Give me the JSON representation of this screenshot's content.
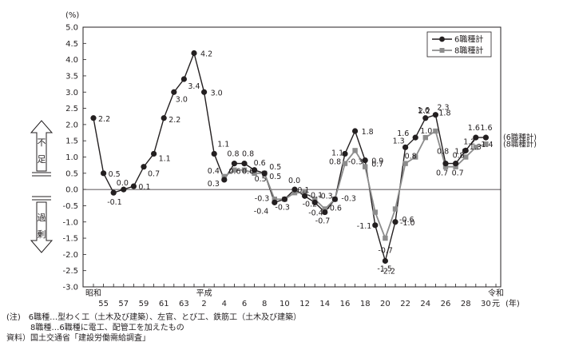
{
  "chart_data": {
    "type": "line",
    "y_unit": "(%)",
    "x_unit": "(年)",
    "ylim": [
      -3.0,
      5.0
    ],
    "y_ticks": [
      "5.0",
      "4.5",
      "4.0",
      "3.5",
      "3.0",
      "2.5",
      "2.0",
      "1.5",
      "1.0",
      "0.5",
      "0.0",
      "-0.5",
      "-1.0",
      "-1.5",
      "-2.0",
      "-2.5",
      "-3.0"
    ],
    "x_categories": [
      "S54",
      "S55",
      "S56",
      "S57",
      "S58",
      "S59",
      "S60",
      "S61",
      "S62",
      "S63",
      "H1",
      "H2",
      "H3",
      "H4",
      "H5",
      "H6",
      "H7",
      "H8",
      "H9",
      "H10",
      "H11",
      "H12",
      "H13",
      "H14",
      "H15",
      "H16",
      "H17",
      "H18",
      "H19",
      "H20",
      "H21",
      "H22",
      "H23",
      "H24",
      "H25",
      "H26",
      "H27",
      "H28",
      "H29",
      "H30",
      "R1"
    ],
    "x_tick_labels": [
      {
        "x": 1,
        "label": "55"
      },
      {
        "x": 3,
        "label": "57"
      },
      {
        "x": 5,
        "label": "59"
      },
      {
        "x": 7,
        "label": "61"
      },
      {
        "x": 9,
        "label": "63"
      },
      {
        "x": 11,
        "label": "2"
      },
      {
        "x": 13,
        "label": "4"
      },
      {
        "x": 15,
        "label": "6"
      },
      {
        "x": 17,
        "label": "8"
      },
      {
        "x": 19,
        "label": "10"
      },
      {
        "x": 21,
        "label": "12"
      },
      {
        "x": 23,
        "label": "14"
      },
      {
        "x": 25,
        "label": "16"
      },
      {
        "x": 27,
        "label": "18"
      },
      {
        "x": 29,
        "label": "20"
      },
      {
        "x": 31,
        "label": "22"
      },
      {
        "x": 33,
        "label": "24"
      },
      {
        "x": 35,
        "label": "26"
      },
      {
        "x": 37,
        "label": "28"
      },
      {
        "x": 39,
        "label": "30"
      },
      {
        "x": 40,
        "label": "元"
      }
    ],
    "era_labels": [
      {
        "x": 0,
        "label": "昭和"
      },
      {
        "x": 11,
        "label": "平成"
      },
      {
        "x": 40,
        "label": "令和"
      }
    ],
    "series": [
      {
        "name": "6職種計",
        "marker": "circle",
        "color": "#231f20",
        "values": [
          2.2,
          0.5,
          -0.1,
          0.0,
          0.1,
          0.7,
          1.1,
          2.2,
          3.0,
          3.4,
          4.2,
          3.0,
          1.1,
          0.3,
          0.8,
          0.8,
          0.6,
          0.5,
          -0.4,
          -0.3,
          0.0,
          -0.2,
          -0.4,
          -0.7,
          -0.3,
          1.1,
          1.8,
          0.9,
          -1.1,
          -2.2,
          -1.0,
          1.3,
          1.6,
          2.2,
          2.3,
          0.8,
          0.8,
          1.2,
          1.6,
          1.6
        ]
      },
      {
        "name": "8職種計",
        "marker": "square",
        "color": "#8c8c8c",
        "values": [
          null,
          null,
          null,
          null,
          null,
          null,
          null,
          null,
          null,
          null,
          null,
          null,
          null,
          0.4,
          0.6,
          0.6,
          0.5,
          0.5,
          -0.3,
          -0.3,
          -0.1,
          -0.1,
          -0.3,
          -0.6,
          -0.3,
          0.8,
          1.2,
          0.7,
          -0.7,
          -1.5,
          -0.6,
          0.8,
          1.0,
          1.6,
          1.8,
          0.7,
          0.7,
          1.0,
          1.3,
          1.4
        ]
      }
    ],
    "data_labels": [
      {
        "x": 0,
        "text": "2.2",
        "dx": 6,
        "dy": 4
      },
      {
        "x": 1,
        "text": "0.5",
        "dx": 6,
        "dy": 4
      },
      {
        "x": 2,
        "text": "-0.1",
        "dx": -8,
        "dy": 15
      },
      {
        "x": 3,
        "text": "0.0",
        "dx": -9,
        "dy": -5
      },
      {
        "x": 4,
        "text": "0.1",
        "dx": 6,
        "dy": 4
      },
      {
        "x": 5,
        "text": "0.7",
        "dx": 5,
        "dy": 12
      },
      {
        "x": 6,
        "text": "1.1",
        "dx": 6,
        "dy": 9
      },
      {
        "x": 7,
        "text": "2.2",
        "dx": 6,
        "dy": 5
      },
      {
        "x": 8,
        "text": "3.0",
        "dx": 2,
        "dy": 12
      },
      {
        "x": 9,
        "text": "3.4",
        "dx": 5,
        "dy": 12
      },
      {
        "x": 10,
        "text": "4.2",
        "dx": 8,
        "dy": 4
      },
      {
        "x": 11,
        "text": "3.0",
        "dx": 8,
        "dy": 4
      },
      {
        "x": 12,
        "text": "1.1",
        "dx": 4,
        "dy": -9
      },
      {
        "x": 13,
        "text": "0.4",
        "dx": -21,
        "dy": -8
      },
      {
        "x": 13,
        "text": "0.3",
        "dx": -21,
        "dy": 8
      },
      {
        "x": 14,
        "text": "0.8",
        "dx": -9,
        "dy": -9
      },
      {
        "x": 14,
        "text": "0.6",
        "dx": -7,
        "dy": 13
      },
      {
        "x": 15,
        "text": "0.8",
        "dx": -3,
        "dy": -9
      },
      {
        "x": 15,
        "text": "0.6",
        "dx": -3,
        "dy": 13
      },
      {
        "x": 16,
        "text": "0.6",
        "dx": -1,
        "dy": -6
      },
      {
        "x": 16,
        "text": "0.5",
        "dx": 0,
        "dy": 14
      },
      {
        "x": 17,
        "text": "0.5",
        "dx": 6,
        "dy": -5
      },
      {
        "x": 17,
        "text": "0.5",
        "dx": 6,
        "dy": 7
      },
      {
        "x": 18,
        "text": "-0.3",
        "dx": -25,
        "dy": -2
      },
      {
        "x": 18,
        "text": "-0.4",
        "dx": -26,
        "dy": 14
      },
      {
        "x": 19,
        "text": "-0.3",
        "dx": -12,
        "dy": 13
      },
      {
        "x": 20,
        "text": "0.0",
        "dx": -8,
        "dy": -8
      },
      {
        "x": 20,
        "text": "-0.1",
        "dx": 0,
        "dy": 4
      },
      {
        "x": 21,
        "text": "-0.1",
        "dx": 4,
        "dy": 2
      },
      {
        "x": 21,
        "text": "-0.2",
        "dx": -3,
        "dy": 13
      },
      {
        "x": 22,
        "text": "-0.3",
        "dx": 4,
        "dy": -5
      },
      {
        "x": 22,
        "text": "-0.4",
        "dx": -8,
        "dy": 16
      },
      {
        "x": 23,
        "text": "-0.7",
        "dx": -12,
        "dy": 14
      },
      {
        "x": 24,
        "text": "-0.6",
        "dx": -10,
        "dy": 14
      },
      {
        "x": 24,
        "text": "-0.3",
        "dx": 8,
        "dy": 2
      },
      {
        "x": 25,
        "text": "-0.3",
        "dx": 4,
        "dy": 13
      },
      {
        "x": 25,
        "text": "1.1",
        "dx": -17,
        "dy": 2
      },
      {
        "x": 25,
        "text": "0.8",
        "dx": -20,
        "dy": 13
      },
      {
        "x": 26,
        "text": "1.8",
        "dx": 8,
        "dy": 4
      },
      {
        "x": 27,
        "text": "0.9",
        "dx": 8,
        "dy": 4
      },
      {
        "x": 27,
        "text": "0.7",
        "dx": 8,
        "dy": 8
      },
      {
        "x": 28,
        "text": "-1.1",
        "dx": -23,
        "dy": 4
      },
      {
        "x": 29,
        "text": "-0.7",
        "dx": -9,
        "dy": -10
      },
      {
        "x": 29,
        "text": "-1.5",
        "dx": -10,
        "dy": 13
      },
      {
        "x": 29,
        "text": "-2.2",
        "dx": -6,
        "dy": 16
      },
      {
        "x": 30,
        "text": "-0.6",
        "dx": 5,
        "dy": 0
      },
      {
        "x": 30,
        "text": "-1.0",
        "dx": 6,
        "dy": 4
      },
      {
        "x": 31,
        "text": "1.3",
        "dx": -16,
        "dy": -5
      },
      {
        "x": 31,
        "text": "0.8",
        "dx": -1,
        "dy": 14
      },
      {
        "x": 32,
        "text": "1.6",
        "dx": -23,
        "dy": -2
      },
      {
        "x": 32,
        "text": "1.0",
        "dx": 6,
        "dy": -5
      },
      {
        "x": 33,
        "text": "2.2",
        "dx": -9,
        "dy": -6
      },
      {
        "x": 33,
        "text": "1.6",
        "dx": -10,
        "dy": -7
      },
      {
        "x": 34,
        "text": "2.3",
        "dx": 2,
        "dy": -6
      },
      {
        "x": 34,
        "text": "1.8",
        "dx": 4,
        "dy": 1
      },
      {
        "x": 35,
        "text": "0.8",
        "dx": -11,
        "dy": -12
      },
      {
        "x": 35,
        "text": "0.7",
        "dx": -12,
        "dy": 15
      },
      {
        "x": 36,
        "text": "0.8",
        "dx": -4,
        "dy": -7
      },
      {
        "x": 36,
        "text": "0.7",
        "dx": -5,
        "dy": 15
      },
      {
        "x": 37,
        "text": "1.2",
        "dx": -3,
        "dy": -8
      },
      {
        "x": 37,
        "text": "1.0",
        "dx": -14,
        "dy": 4
      },
      {
        "x": 38,
        "text": "1.6",
        "dx": -10,
        "dy": -9
      },
      {
        "x": 38,
        "text": "1.3",
        "dx": -8,
        "dy": 15
      },
      {
        "x": 39,
        "text": "1.6",
        "dx": -7,
        "dy": -9
      },
      {
        "x": 39,
        "text": "1.4",
        "dx": -6,
        "dy": 12
      }
    ],
    "end_labels": [
      "(6職種計)",
      "(8職種計)"
    ],
    "side_labels": {
      "shortage": [
        "不",
        "足"
      ],
      "excess": [
        "過",
        "剰"
      ]
    },
    "grid": false,
    "legend_position": "top-right"
  },
  "notes": {
    "line1": "(注)　6職種…型わく工（土木及び建築）、左官、とび工、鉄筋工（土木及び建築）",
    "line2": "　　　8職種…6職種に電工、配管工を加えたもの",
    "line3": "資料）国土交通省「建設労働需給調査」"
  }
}
